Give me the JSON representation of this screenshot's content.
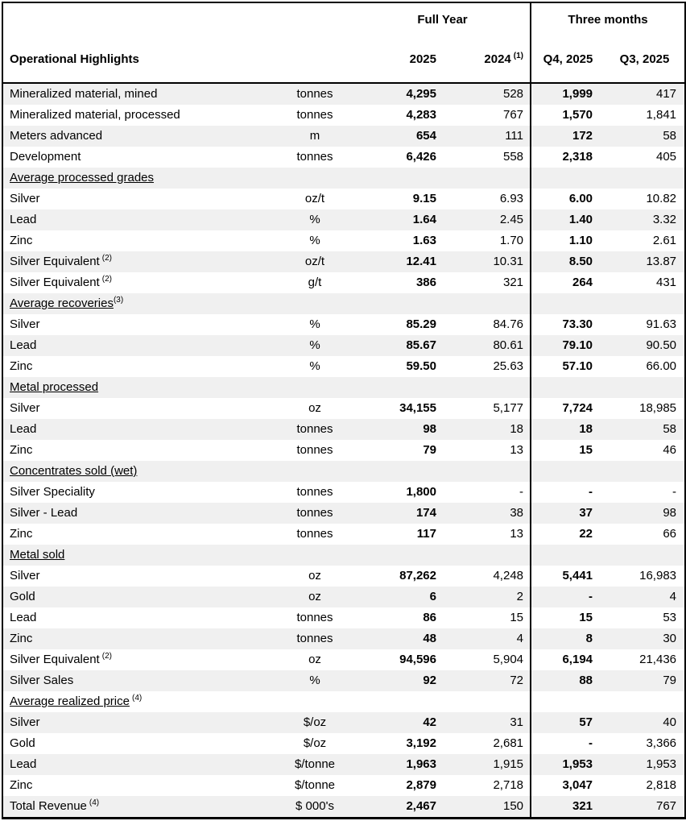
{
  "colors": {
    "background": "#ffffff",
    "stripe": "#f0f0f0",
    "border": "#000000",
    "text": "#000000"
  },
  "table": {
    "header": {
      "group_full_year": "Full Year",
      "group_three_months": "Three months",
      "col_label": "Operational Highlights",
      "col_fy2025": "2025",
      "col_fy2024": "2024",
      "col_fy2024_sup": "(1)",
      "col_q4": "Q4, 2025",
      "col_q3": "Q3, 2025"
    },
    "rows": [
      {
        "type": "data",
        "label": "Mineralized material, mined",
        "unit": "tonnes",
        "fy2025": "4,295",
        "fy2024": "528",
        "q4": "1,999",
        "q3": "417"
      },
      {
        "type": "data",
        "label": "Mineralized material, processed",
        "unit": "tonnes",
        "fy2025": "4,283",
        "fy2024": "767",
        "q4": "1,570",
        "q3": "1,841"
      },
      {
        "type": "data",
        "label": "Meters advanced",
        "unit": "m",
        "fy2025": "654",
        "fy2024": "111",
        "q4": "172",
        "q3": "58"
      },
      {
        "type": "data",
        "label": "Development",
        "unit": "tonnes",
        "fy2025": "6,426",
        "fy2024": "558",
        "q4": "2,318",
        "q3": "405"
      },
      {
        "type": "section",
        "label": "Average processed grades"
      },
      {
        "type": "data",
        "label": "Silver",
        "unit": "oz/t",
        "fy2025": "9.15",
        "fy2024": "6.93",
        "q4": "6.00",
        "q3": "10.82"
      },
      {
        "type": "data",
        "label": "Lead",
        "unit": "%",
        "fy2025": "1.64",
        "fy2024": "2.45",
        "q4": "1.40",
        "q3": "3.32"
      },
      {
        "type": "data",
        "label": "Zinc",
        "unit": "%",
        "fy2025": "1.63",
        "fy2024": "1.70",
        "q4": "1.10",
        "q3": "2.61"
      },
      {
        "type": "data",
        "label": "Silver Equivalent",
        "sup": "(2)",
        "supGap": true,
        "unit": "oz/t",
        "fy2025": "12.41",
        "fy2024": "10.31",
        "q4": "8.50",
        "q3": "13.87"
      },
      {
        "type": "data",
        "label": "Silver Equivalent",
        "sup": "(2)",
        "supGap": true,
        "unit": "g/t",
        "fy2025": "386",
        "fy2024": "321",
        "q4": "264",
        "q3": "431"
      },
      {
        "type": "section",
        "label": "Average recoveries",
        "sup": "(3)",
        "supGap": false
      },
      {
        "type": "data",
        "label": "Silver",
        "unit": "%",
        "fy2025": "85.29",
        "fy2024": "84.76",
        "q4": "73.30",
        "q3": "91.63"
      },
      {
        "type": "data",
        "label": "Lead",
        "unit": "%",
        "fy2025": "85.67",
        "fy2024": "80.61",
        "q4": "79.10",
        "q3": "90.50"
      },
      {
        "type": "data",
        "label": "Zinc",
        "unit": "%",
        "fy2025": "59.50",
        "fy2024": "25.63",
        "q4": "57.10",
        "q3": "66.00"
      },
      {
        "type": "section",
        "label": "Metal processed"
      },
      {
        "type": "data",
        "label": "Silver",
        "unit": "oz",
        "fy2025": "34,155",
        "fy2024": "5,177",
        "q4": "7,724",
        "q3": "18,985"
      },
      {
        "type": "data",
        "label": "Lead",
        "unit": "tonnes",
        "fy2025": "98",
        "fy2024": "18",
        "q4": "18",
        "q3": "58"
      },
      {
        "type": "data",
        "label": "Zinc",
        "unit": "tonnes",
        "fy2025": "79",
        "fy2024": "13",
        "q4": "15",
        "q3": "46"
      },
      {
        "type": "section",
        "label": "Concentrates sold (wet)"
      },
      {
        "type": "data",
        "label": "Silver Speciality",
        "unit": "tonnes",
        "fy2025": "1,800",
        "fy2024": "-",
        "q4": "-",
        "q3": "-"
      },
      {
        "type": "data",
        "label": "Silver - Lead",
        "unit": "tonnes",
        "fy2025": "174",
        "fy2024": "38",
        "q4": "37",
        "q3": "98"
      },
      {
        "type": "data",
        "label": "Zinc",
        "unit": "tonnes",
        "fy2025": "117",
        "fy2024": "13",
        "q4": "22",
        "q3": "66"
      },
      {
        "type": "section",
        "label": "Metal sold"
      },
      {
        "type": "data",
        "label": "Silver",
        "unit": "oz",
        "fy2025": "87,262",
        "fy2024": "4,248",
        "q4": "5,441",
        "q3": "16,983"
      },
      {
        "type": "data",
        "label": "Gold",
        "unit": "oz",
        "fy2025": "6",
        "fy2024": "2",
        "q4": "-",
        "q3": "4"
      },
      {
        "type": "data",
        "label": "Lead",
        "unit": "tonnes",
        "fy2025": "86",
        "fy2024": "15",
        "q4": "15",
        "q3": "53"
      },
      {
        "type": "data",
        "label": "Zinc",
        "unit": "tonnes",
        "fy2025": "48",
        "fy2024": "4",
        "q4": "8",
        "q3": "30"
      },
      {
        "type": "data",
        "label": "Silver Equivalent",
        "sup": "(2)",
        "supGap": true,
        "unit": "oz",
        "fy2025": "94,596",
        "fy2024": "5,904",
        "q4": "6,194",
        "q3": "21,436"
      },
      {
        "type": "data",
        "label": "Silver Sales",
        "unit": "%",
        "fy2025": "92",
        "fy2024": "72",
        "q4": "88",
        "q3": "79"
      },
      {
        "type": "section",
        "label": "Average realized price",
        "sup": "(4)",
        "supGap": true
      },
      {
        "type": "data",
        "label": "Silver",
        "unit": "$/oz",
        "fy2025": "42",
        "fy2024": "31",
        "q4": "57",
        "q3": "40"
      },
      {
        "type": "data",
        "label": "Gold",
        "unit": "$/oz",
        "fy2025": "3,192",
        "fy2024": "2,681",
        "q4": "-",
        "q3": "3,366"
      },
      {
        "type": "data",
        "label": "Lead",
        "unit": "$/tonne",
        "fy2025": "1,963",
        "fy2024": "1,915",
        "q4": "1,953",
        "q3": "1,953"
      },
      {
        "type": "data",
        "label": "Zinc",
        "unit": "$/tonne",
        "fy2025": "2,879",
        "fy2024": "2,718",
        "q4": "3,047",
        "q3": "2,818"
      },
      {
        "type": "data",
        "label": "Total Revenue",
        "sup": "(4)",
        "supGap": true,
        "unit": "$ 000's",
        "fy2025": "2,467",
        "fy2024": "150",
        "q4": "321",
        "q3": "767"
      }
    ]
  }
}
